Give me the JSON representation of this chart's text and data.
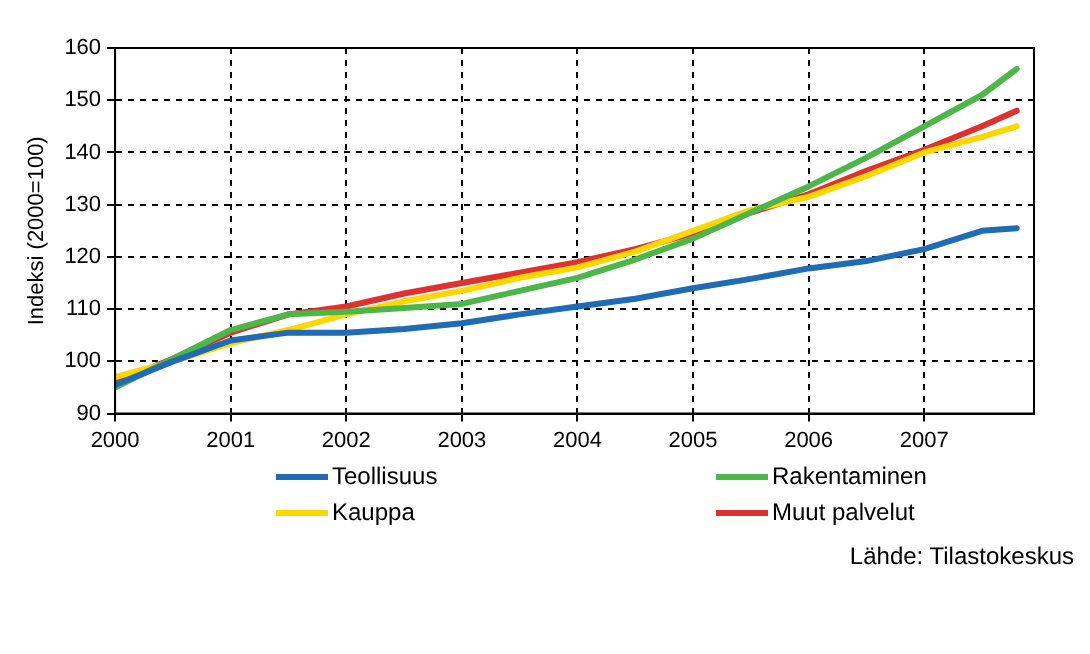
{
  "chart_data": {
    "type": "line",
    "ylabel": "Indeksi (2000=100)",
    "xlim": [
      2000,
      2007.95
    ],
    "xticks": [
      2000,
      2001,
      2002,
      2003,
      2004,
      2005,
      2006,
      2007
    ],
    "ylim": [
      90,
      160
    ],
    "yticks": [
      90,
      100,
      110,
      120,
      130,
      140,
      150,
      160
    ],
    "grid": true,
    "legend": "bottom",
    "marker": "none",
    "line_style": "solid",
    "annotations": [
      "Lähde: Tilastokeskus"
    ],
    "x": [
      2000,
      2000.5,
      2001,
      2001.5,
      2002,
      2002.5,
      2003,
      2003.5,
      2004,
      2004.5,
      2005,
      2005.5,
      2006,
      2006.5,
      2007,
      2007.5,
      2007.8
    ],
    "series": [
      {
        "name": "Teollisuus",
        "color": "#1f6bb5",
        "values": [
          95.5,
          100,
          104,
          105.5,
          105.5,
          106.2,
          107.3,
          109,
          110.5,
          112,
          114,
          115.8,
          117.8,
          119.2,
          121.5,
          125,
          125.5
        ]
      },
      {
        "name": "Rakentaminen",
        "color": "#4cb748",
        "values": [
          95,
          100.5,
          106,
          109,
          109.5,
          110.2,
          111,
          113.5,
          116,
          119.5,
          123.5,
          128.5,
          133.5,
          139,
          145,
          151,
          156
        ]
      },
      {
        "name": "Kauppa",
        "color": "#ffd700",
        "values": [
          97,
          100,
          103.5,
          106,
          109,
          111.5,
          113.5,
          116,
          118,
          121,
          125,
          129,
          131.5,
          135.5,
          140,
          143,
          145
        ]
      },
      {
        "name": "Muut palvelut",
        "color": "#e03030",
        "values": [
          96,
          100.5,
          105.5,
          109,
          110.5,
          113,
          115,
          117,
          119,
          121.5,
          124.5,
          128.5,
          132,
          136.5,
          140.5,
          145,
          148
        ]
      }
    ]
  }
}
